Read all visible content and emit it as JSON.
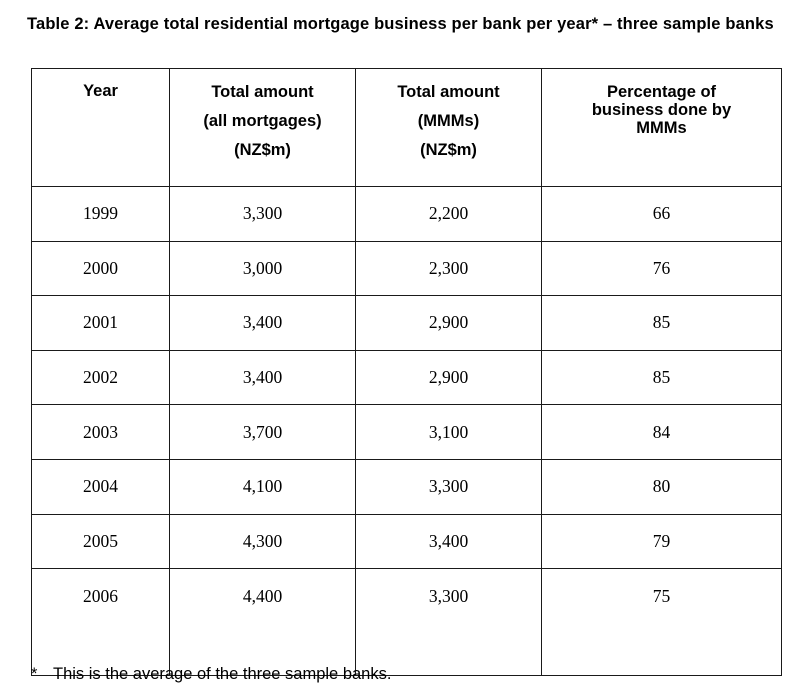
{
  "caption": "Table 2: Average total residential mortgage business per bank per year* – three sample banks",
  "table": {
    "headers": {
      "year": [
        "Year"
      ],
      "total_all": [
        "Total amount",
        "(all mortgages)",
        "(NZ$m)"
      ],
      "total_mmm": [
        "Total amount",
        "(MMMs)",
        "(NZ$m)"
      ],
      "percentage": [
        "Percentage of",
        "business done by",
        "MMMs"
      ]
    },
    "rows": [
      {
        "year": "1999",
        "total_all": "3,300",
        "total_mmm": "2,200",
        "percentage": "66"
      },
      {
        "year": "2000",
        "total_all": "3,000",
        "total_mmm": "2,300",
        "percentage": "76"
      },
      {
        "year": "2001",
        "total_all": "3,400",
        "total_mmm": "2,900",
        "percentage": "85"
      },
      {
        "year": "2002",
        "total_all": "3,400",
        "total_mmm": "2,900",
        "percentage": "85"
      },
      {
        "year": "2003",
        "total_all": "3,700",
        "total_mmm": "3,100",
        "percentage": "84"
      },
      {
        "year": "2004",
        "total_all": "4,100",
        "total_mmm": "3,300",
        "percentage": "80"
      },
      {
        "year": "2005",
        "total_all": "4,300",
        "total_mmm": "3,400",
        "percentage": "79"
      },
      {
        "year": "2006",
        "total_all": "4,400",
        "total_mmm": "3,300",
        "percentage": "75"
      }
    ]
  },
  "footnote": {
    "marker": "*",
    "text": "This is the average of the three sample banks."
  }
}
